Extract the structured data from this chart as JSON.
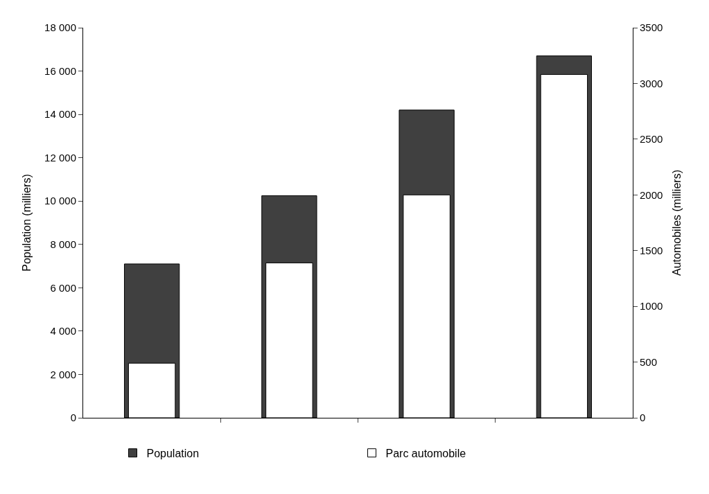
{
  "chart_data": {
    "type": "bar",
    "ylabel": "Population (milliers)",
    "y2label": "Automobiles (milliers)",
    "categories": [
      null,
      null,
      null,
      null
    ],
    "series": [
      {
        "name": "Population",
        "color": "#404040",
        "values": [
          7100,
          10250,
          14200,
          16700
        ]
      },
      {
        "name": "Parc automobile",
        "color": "#ffffff",
        "values": [
          490,
          1390,
          2000,
          3080
        ],
        "axis": "y2"
      }
    ],
    "ylim": [
      0,
      18000
    ],
    "yticks": [
      0,
      {
        "value": 2000,
        "label": "2 000"
      },
      {
        "value": 4000,
        "label": "4 000"
      },
      {
        "value": 6000,
        "label": "6 000"
      },
      {
        "value": 8000,
        "label": "8 000"
      },
      {
        "value": 10000,
        "label": "10 000"
      },
      {
        "value": 12000,
        "label": "12 000"
      },
      {
        "value": 14000,
        "label": "14 000"
      },
      {
        "value": 16000,
        "label": "16 000"
      },
      {
        "value": 18000,
        "label": "18 000"
      }
    ],
    "y2lim": [
      0,
      3500
    ],
    "y2ticks": [
      0,
      500,
      1000,
      1500,
      2000,
      2500,
      3000,
      3500
    ],
    "legend": "bottom"
  }
}
